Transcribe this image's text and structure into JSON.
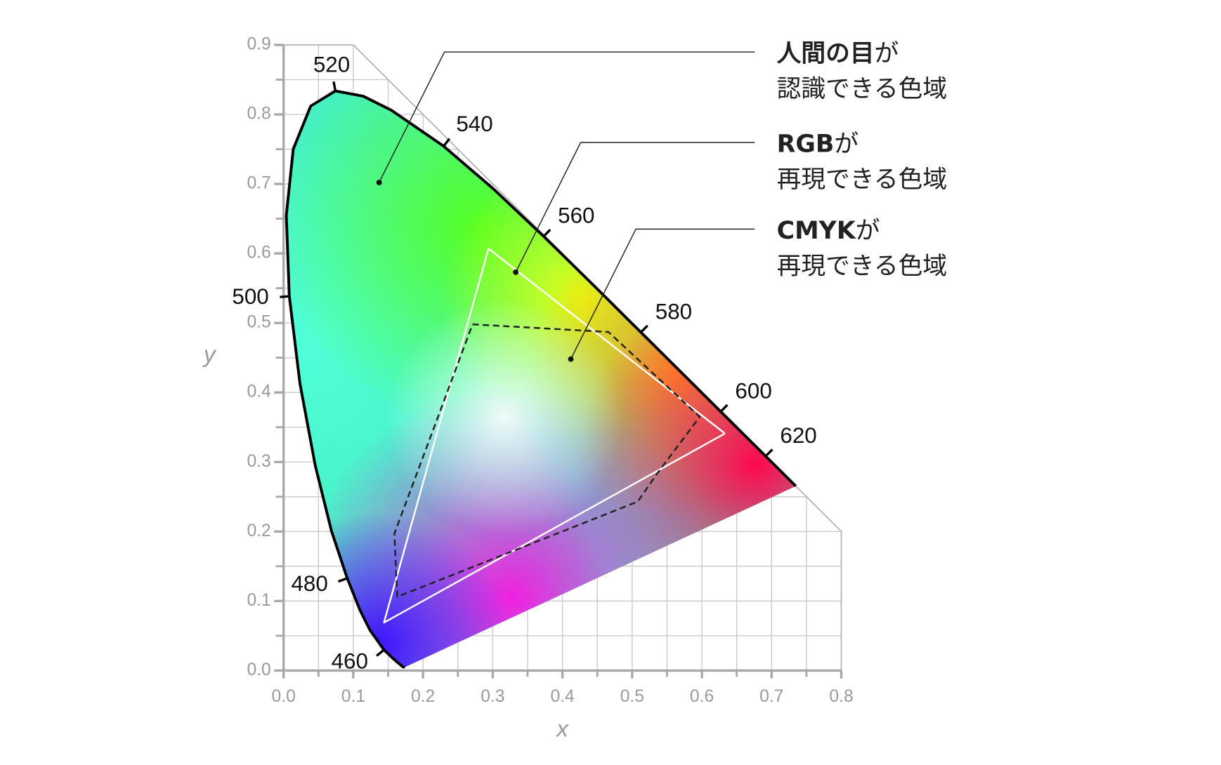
{
  "chart_data": {
    "type": "chromaticity",
    "xlabel": "x",
    "ylabel": "y",
    "xlim": [
      0,
      0.8
    ],
    "ylim": [
      0,
      0.9
    ],
    "xticks": [
      {
        "value": 0,
        "label": "0.0"
      },
      0.1,
      0.2,
      0.3,
      0.4,
      0.5,
      0.6,
      0.7,
      0.8
    ],
    "yticks": [
      {
        "value": 0,
        "label": "0.0"
      },
      0.1,
      0.2,
      0.3,
      0.4,
      0.5,
      0.6,
      0.7,
      0.8,
      0.9
    ],
    "minor_xticks": [
      0.05,
      0.15,
      0.25,
      0.35,
      0.45,
      0.55,
      0.65,
      0.75
    ],
    "minor_yticks": [
      0.05,
      0.15,
      0.25,
      0.35,
      0.45,
      0.55,
      0.65,
      0.75,
      0.85
    ],
    "grid": true,
    "grid_boundary": {
      "x": [
        0,
        0,
        0.1,
        0.8,
        0.8
      ],
      "y": [
        0,
        0.9,
        0.9,
        0.2,
        0
      ]
    },
    "series": [
      {
        "color": "#000000",
        "dash": false,
        "x": [
          0.1741,
          0.1714,
          0.1644,
          0.1566,
          0.144,
          0.1241,
          0.1096,
          0.0913,
          0.0687,
          0.0454,
          0.0235,
          0.0082,
          0.0039,
          0.0139,
          0.0389,
          0.0743,
          0.1142,
          0.1547,
          0.2296,
          0.3016,
          0.3731,
          0.4441,
          0.5125,
          0.5752,
          0.627,
          0.6915,
          0.719,
          0.7347
        ],
        "y": [
          0.005,
          0.0051,
          0.0109,
          0.0177,
          0.0297,
          0.0578,
          0.0868,
          0.1327,
          0.2007,
          0.295,
          0.4127,
          0.5384,
          0.6548,
          0.7502,
          0.812,
          0.8338,
          0.8262,
          0.8059,
          0.7543,
          0.6923,
          0.6245,
          0.5547,
          0.4866,
          0.4242,
          0.3725,
          0.3083,
          0.2809,
          0.2653
        ]
      },
      {
        "color": "#ffffff",
        "dash": false,
        "x": [
          0.633,
          0.294,
          0.144,
          0.633
        ],
        "y": [
          0.341,
          0.607,
          0.069,
          0.341
        ]
      },
      {
        "color": "#222222",
        "dash": true,
        "x": [
          0.271,
          0.466,
          0.597,
          0.537,
          0.508,
          0.163,
          0.159,
          0.271
        ],
        "y": [
          0.498,
          0.487,
          0.365,
          0.285,
          0.243,
          0.106,
          0.197,
          0.498
        ]
      }
    ],
    "wavelengths": [
      {
        "label": 460,
        "x": 0.144,
        "y": 0.0297
      },
      {
        "label": 480,
        "x": 0.0913,
        "y": 0.1327
      },
      {
        "label": 500,
        "x": 0.0082,
        "y": 0.5384
      },
      {
        "label": 520,
        "x": 0.0743,
        "y": 0.8338
      },
      {
        "label": 540,
        "x": 0.2296,
        "y": 0.7543
      },
      {
        "label": 560,
        "x": 0.3731,
        "y": 0.6245
      },
      {
        "label": 580,
        "x": 0.5125,
        "y": 0.4866
      },
      {
        "label": 600,
        "x": 0.627,
        "y": 0.3725
      },
      {
        "label": 620,
        "x": 0.6915,
        "y": 0.3083
      }
    ],
    "annotations": [
      {
        "bold": "人間の目",
        "rest": "が",
        "line2": "認識できる色域",
        "x": 0.137,
        "y": 0.702
      },
      {
        "bold": "RGB",
        "rest": "が",
        "line2": "再現できる色域",
        "x": 0.333,
        "y": 0.573
      },
      {
        "bold": "CMYK",
        "rest": "が",
        "line2": "再現できる色域",
        "x": 0.412,
        "y": 0.448
      }
    ]
  }
}
